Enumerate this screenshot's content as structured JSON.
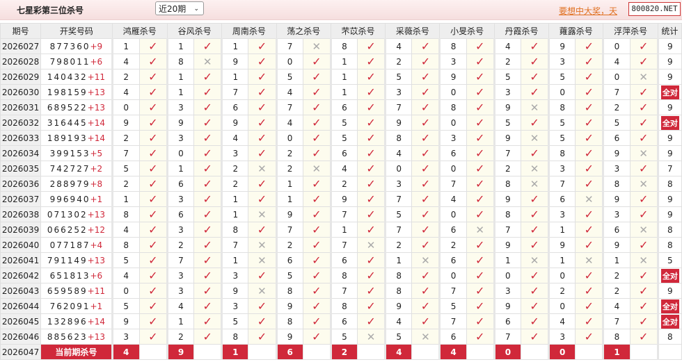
{
  "header": {
    "title": "七星彩第三位杀号",
    "period_select": "近20期",
    "promo_text": "要想中大奖，天",
    "site_badge": "800820.NET"
  },
  "colors": {
    "accent": "#d0283a",
    "check": "#d0283a",
    "cross": "#aaaaaa"
  },
  "table": {
    "columns": [
      "期号",
      "开奖号码",
      "鸿雁杀号",
      "谷风杀号",
      "周南杀号",
      "荡之杀号",
      "芣苡杀号",
      "采薇杀号",
      "小旻杀号",
      "丹霞杀号",
      "蕹露杀号",
      "浮萍杀号",
      "统计"
    ],
    "rows": [
      {
        "period": "2026027",
        "nums": "877360",
        "plus": "+9",
        "kills": [
          [
            1,
            1
          ],
          [
            1,
            1
          ],
          [
            1,
            1
          ],
          [
            7,
            0
          ],
          [
            8,
            1
          ],
          [
            4,
            1
          ],
          [
            8,
            1
          ],
          [
            4,
            1
          ],
          [
            9,
            1
          ],
          [
            0,
            1
          ]
        ],
        "stat": "9"
      },
      {
        "period": "2026028",
        "nums": "798011",
        "plus": "+6",
        "kills": [
          [
            4,
            1
          ],
          [
            8,
            0
          ],
          [
            9,
            1
          ],
          [
            0,
            1
          ],
          [
            1,
            1
          ],
          [
            2,
            1
          ],
          [
            3,
            1
          ],
          [
            2,
            1
          ],
          [
            3,
            1
          ],
          [
            4,
            1
          ]
        ],
        "stat": "9"
      },
      {
        "period": "2026029",
        "nums": "140432",
        "plus": "+11",
        "kills": [
          [
            2,
            1
          ],
          [
            1,
            1
          ],
          [
            1,
            1
          ],
          [
            5,
            1
          ],
          [
            1,
            1
          ],
          [
            5,
            1
          ],
          [
            9,
            1
          ],
          [
            5,
            1
          ],
          [
            5,
            1
          ],
          [
            0,
            0
          ]
        ],
        "stat": "9"
      },
      {
        "period": "2026030",
        "nums": "198159",
        "plus": "+13",
        "kills": [
          [
            4,
            1
          ],
          [
            1,
            1
          ],
          [
            7,
            1
          ],
          [
            4,
            1
          ],
          [
            1,
            1
          ],
          [
            3,
            1
          ],
          [
            0,
            1
          ],
          [
            3,
            1
          ],
          [
            0,
            1
          ],
          [
            7,
            1
          ]
        ],
        "stat": "全对"
      },
      {
        "period": "2026031",
        "nums": "689522",
        "plus": "+13",
        "kills": [
          [
            0,
            1
          ],
          [
            3,
            1
          ],
          [
            6,
            1
          ],
          [
            7,
            1
          ],
          [
            6,
            1
          ],
          [
            7,
            1
          ],
          [
            8,
            1
          ],
          [
            9,
            0
          ],
          [
            8,
            1
          ],
          [
            2,
            1
          ]
        ],
        "stat": "9"
      },
      {
        "period": "2026032",
        "nums": "316445",
        "plus": "+14",
        "kills": [
          [
            9,
            1
          ],
          [
            9,
            1
          ],
          [
            9,
            1
          ],
          [
            4,
            1
          ],
          [
            5,
            1
          ],
          [
            9,
            1
          ],
          [
            0,
            1
          ],
          [
            5,
            1
          ],
          [
            5,
            1
          ],
          [
            5,
            1
          ]
        ],
        "stat": "全对"
      },
      {
        "period": "2026033",
        "nums": "189193",
        "plus": "+14",
        "kills": [
          [
            2,
            1
          ],
          [
            3,
            1
          ],
          [
            4,
            1
          ],
          [
            0,
            1
          ],
          [
            5,
            1
          ],
          [
            8,
            1
          ],
          [
            3,
            1
          ],
          [
            9,
            0
          ],
          [
            5,
            1
          ],
          [
            6,
            1
          ]
        ],
        "stat": "9"
      },
      {
        "period": "2026034",
        "nums": "399153",
        "plus": "+5",
        "kills": [
          [
            7,
            1
          ],
          [
            0,
            1
          ],
          [
            3,
            1
          ],
          [
            2,
            1
          ],
          [
            6,
            1
          ],
          [
            4,
            1
          ],
          [
            6,
            1
          ],
          [
            7,
            1
          ],
          [
            8,
            1
          ],
          [
            9,
            0
          ]
        ],
        "stat": "9"
      },
      {
        "period": "2026035",
        "nums": "742727",
        "plus": "+2",
        "kills": [
          [
            5,
            1
          ],
          [
            1,
            1
          ],
          [
            2,
            0
          ],
          [
            2,
            0
          ],
          [
            4,
            1
          ],
          [
            0,
            1
          ],
          [
            0,
            1
          ],
          [
            2,
            0
          ],
          [
            3,
            1
          ],
          [
            3,
            1
          ]
        ],
        "stat": "7"
      },
      {
        "period": "2026036",
        "nums": "288979",
        "plus": "+8",
        "kills": [
          [
            2,
            1
          ],
          [
            6,
            1
          ],
          [
            2,
            1
          ],
          [
            1,
            1
          ],
          [
            2,
            1
          ],
          [
            3,
            1
          ],
          [
            7,
            1
          ],
          [
            8,
            0
          ],
          [
            7,
            1
          ],
          [
            8,
            0
          ]
        ],
        "stat": "8"
      },
      {
        "period": "2026037",
        "nums": "996940",
        "plus": "+1",
        "kills": [
          [
            1,
            1
          ],
          [
            3,
            1
          ],
          [
            1,
            1
          ],
          [
            1,
            1
          ],
          [
            9,
            1
          ],
          [
            7,
            1
          ],
          [
            4,
            1
          ],
          [
            9,
            1
          ],
          [
            6,
            0
          ],
          [
            9,
            1
          ]
        ],
        "stat": "9"
      },
      {
        "period": "2026038",
        "nums": "071302",
        "plus": "+13",
        "kills": [
          [
            8,
            1
          ],
          [
            6,
            1
          ],
          [
            1,
            0
          ],
          [
            9,
            1
          ],
          [
            7,
            1
          ],
          [
            5,
            1
          ],
          [
            0,
            1
          ],
          [
            8,
            1
          ],
          [
            3,
            1
          ],
          [
            3,
            1
          ]
        ],
        "stat": "9"
      },
      {
        "period": "2026039",
        "nums": "066252",
        "plus": "+12",
        "kills": [
          [
            4,
            1
          ],
          [
            3,
            1
          ],
          [
            8,
            1
          ],
          [
            7,
            1
          ],
          [
            1,
            1
          ],
          [
            7,
            1
          ],
          [
            6,
            0
          ],
          [
            7,
            1
          ],
          [
            1,
            1
          ],
          [
            6,
            0
          ]
        ],
        "stat": "8"
      },
      {
        "period": "2026040",
        "nums": "077187",
        "plus": "+4",
        "kills": [
          [
            8,
            1
          ],
          [
            2,
            1
          ],
          [
            7,
            0
          ],
          [
            2,
            1
          ],
          [
            7,
            0
          ],
          [
            2,
            1
          ],
          [
            2,
            1
          ],
          [
            9,
            1
          ],
          [
            9,
            1
          ],
          [
            9,
            1
          ]
        ],
        "stat": "8"
      },
      {
        "period": "2026041",
        "nums": "791149",
        "plus": "+13",
        "kills": [
          [
            5,
            1
          ],
          [
            7,
            1
          ],
          [
            1,
            0
          ],
          [
            6,
            1
          ],
          [
            6,
            1
          ],
          [
            1,
            0
          ],
          [
            6,
            1
          ],
          [
            1,
            0
          ],
          [
            1,
            0
          ],
          [
            1,
            0
          ]
        ],
        "stat": "5"
      },
      {
        "period": "2026042",
        "nums": "651813",
        "plus": "+6",
        "kills": [
          [
            4,
            1
          ],
          [
            3,
            1
          ],
          [
            3,
            1
          ],
          [
            5,
            1
          ],
          [
            8,
            1
          ],
          [
            8,
            1
          ],
          [
            0,
            1
          ],
          [
            0,
            1
          ],
          [
            0,
            1
          ],
          [
            2,
            1
          ]
        ],
        "stat": "全对"
      },
      {
        "period": "2026043",
        "nums": "659589",
        "plus": "+11",
        "kills": [
          [
            0,
            1
          ],
          [
            3,
            1
          ],
          [
            9,
            0
          ],
          [
            8,
            1
          ],
          [
            7,
            1
          ],
          [
            8,
            1
          ],
          [
            7,
            1
          ],
          [
            3,
            1
          ],
          [
            2,
            1
          ],
          [
            2,
            1
          ]
        ],
        "stat": "9"
      },
      {
        "period": "2026044",
        "nums": "762091",
        "plus": "+1",
        "kills": [
          [
            5,
            1
          ],
          [
            4,
            1
          ],
          [
            3,
            1
          ],
          [
            9,
            1
          ],
          [
            8,
            1
          ],
          [
            9,
            1
          ],
          [
            5,
            1
          ],
          [
            9,
            1
          ],
          [
            0,
            1
          ],
          [
            4,
            1
          ]
        ],
        "stat": "全对"
      },
      {
        "period": "2026045",
        "nums": "132896",
        "plus": "+14",
        "kills": [
          [
            9,
            1
          ],
          [
            1,
            1
          ],
          [
            5,
            1
          ],
          [
            8,
            1
          ],
          [
            6,
            1
          ],
          [
            4,
            1
          ],
          [
            7,
            1
          ],
          [
            6,
            1
          ],
          [
            4,
            1
          ],
          [
            7,
            1
          ]
        ],
        "stat": "全对"
      },
      {
        "period": "2026046",
        "nums": "885623",
        "plus": "+13",
        "kills": [
          [
            3,
            1
          ],
          [
            2,
            1
          ],
          [
            8,
            1
          ],
          [
            9,
            1
          ],
          [
            5,
            0
          ],
          [
            5,
            0
          ],
          [
            6,
            1
          ],
          [
            7,
            1
          ],
          [
            3,
            1
          ],
          [
            8,
            1
          ]
        ],
        "stat": "8"
      }
    ],
    "current": {
      "period": "2026047",
      "label": "当前期杀号",
      "kills": [
        4,
        9,
        1,
        6,
        2,
        4,
        4,
        0,
        0,
        1
      ]
    }
  }
}
